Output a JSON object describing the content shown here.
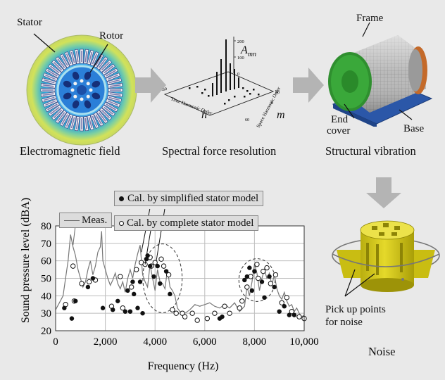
{
  "panels": {
    "em": {
      "caption": "Electromagnetic field",
      "labels": {
        "stator": "Stator",
        "rotor": "Rotor"
      }
    },
    "spectral": {
      "caption": "Spectral force resolution",
      "labels": {
        "amn": "A",
        "amn_sub": "mn",
        "n": "n",
        "m": "m",
        "time_axis": "Time Harmonic Order",
        "space_axis": "Space Harmonic Order",
        "z_ticks": [
          "200",
          "100",
          "0"
        ],
        "n_ticks": [
          "-60",
          "0",
          "60"
        ],
        "m_ticks": [
          "60",
          "0"
        ]
      }
    },
    "structural": {
      "caption": "Structural vibration",
      "labels": {
        "frame": "Frame",
        "end_cover_1": "End",
        "end_cover_2": "cover",
        "base": "Base"
      }
    },
    "noise": {
      "caption": "Noise",
      "labels": {
        "pick_1": "Pick up points",
        "pick_2": "for noise"
      }
    }
  },
  "arrow_color": "#b4b4b4",
  "chart_data": {
    "type": "line",
    "xlabel": "Frequency (Hz)",
    "ylabel": "Sound pressure level (dBA)",
    "xlim": [
      0,
      10000
    ],
    "ylim": [
      20,
      80
    ],
    "xticks": [
      "0",
      "2,000",
      "4,000",
      "6,000",
      "8,000",
      "10,000"
    ],
    "yticks": [
      "20",
      "30",
      "40",
      "50",
      "60",
      "70",
      "80"
    ],
    "grid": true,
    "legend": [
      {
        "label": "Meas.",
        "marker": "line"
      },
      {
        "label": "Cal. by simplified stator model",
        "marker": "filled-circle"
      },
      {
        "label": "Cal. by complete stator model",
        "marker": "open-circle"
      }
    ],
    "series": [
      {
        "name": "Meas.",
        "type": "line",
        "color": "#777777",
        "x": [
          0,
          150,
          300,
          400,
          500,
          600,
          700,
          800,
          900,
          1000,
          1100,
          1200,
          1300,
          1400,
          1500,
          1600,
          1700,
          1800,
          1850,
          1900,
          2000,
          2100,
          2200,
          2300,
          2400,
          2500,
          2600,
          2700,
          2800,
          2900,
          3000,
          3100,
          3200,
          3300,
          3400,
          3500,
          3600,
          3700,
          3800,
          3900,
          4000,
          4100,
          4200,
          4300,
          4400,
          4500,
          4600,
          4700,
          4800,
          4900,
          5000,
          5200,
          5400,
          5600,
          5800,
          6000,
          6200,
          6400,
          6600,
          6800,
          7000,
          7200,
          7400,
          7600,
          7700,
          7800,
          7900,
          8000,
          8100,
          8200,
          8300,
          8400,
          8500,
          8600,
          8700,
          8800,
          8900,
          9000,
          9100,
          9200,
          9300,
          9400,
          9500,
          9600,
          9700,
          9800,
          9900,
          10000
        ],
        "y": [
          32,
          36,
          40,
          50,
          60,
          75,
          68,
          63,
          55,
          50,
          45,
          48,
          55,
          60,
          52,
          57,
          65,
          68,
          77,
          60,
          55,
          50,
          46,
          49,
          53,
          47,
          44,
          48,
          42,
          50,
          55,
          50,
          58,
          64,
          69,
          52,
          48,
          45,
          58,
          50,
          43,
          55,
          48,
          47,
          44,
          55,
          45,
          43,
          40,
          33,
          31,
          30,
          32,
          35,
          34,
          35,
          36,
          34,
          33,
          35,
          33,
          36,
          31,
          34,
          45,
          40,
          48,
          58,
          53,
          43,
          50,
          55,
          50,
          53,
          46,
          52,
          44,
          40,
          38,
          42,
          37,
          34,
          35,
          31,
          33,
          30,
          28,
          29
        ]
      },
      {
        "name": "Cal. by simplified stator model",
        "type": "scatter",
        "marker": "filled",
        "x": [
          350,
          650,
          800,
          1300,
          1500,
          1900,
          2300,
          2500,
          2800,
          2900,
          3000,
          3100,
          3150,
          3300,
          3400,
          3500,
          3650,
          3700,
          3800,
          3950,
          4100,
          4200,
          4450,
          4600,
          6600,
          6700,
          7600,
          7700,
          7800,
          7900,
          8000,
          8300,
          8400,
          8600,
          8800,
          9000,
          9200,
          9400,
          9600
        ],
        "y": [
          33,
          27,
          37,
          45,
          50,
          33,
          32,
          37,
          31,
          43,
          31,
          48,
          41,
          33,
          48,
          30,
          61,
          63,
          57,
          51,
          57,
          47,
          54,
          41,
          27,
          28,
          49,
          51,
          56,
          43,
          54,
          48,
          39,
          51,
          45,
          31,
          34,
          29,
          29
        ],
        "annotations": [
          {
            "x": 3450,
            "y": 65
          },
          {
            "x": 4050,
            "y": 60
          }
        ]
      },
      {
        "name": "Cal. by complete stator model",
        "type": "scatter",
        "marker": "open",
        "x": [
          400,
          700,
          750,
          1050,
          1350,
          1600,
          2250,
          2600,
          2700,
          3050,
          3250,
          3450,
          3600,
          3800,
          3850,
          4000,
          4250,
          4350,
          4550,
          4700,
          4850,
          5100,
          5200,
          5500,
          5700,
          6100,
          6400,
          6800,
          7000,
          7400,
          7500,
          7700,
          7850,
          8100,
          8150,
          8350,
          8500,
          8650,
          8850,
          9100,
          9300,
          9500,
          9800,
          10000
        ],
        "y": [
          35,
          57,
          37,
          47,
          48,
          49,
          34,
          51,
          33,
          45,
          55,
          59,
          58,
          62,
          57,
          59,
          61,
          57,
          52,
          32,
          30,
          30,
          28,
          30,
          26,
          27,
          30,
          34,
          30,
          33,
          37,
          45,
          51,
          58,
          50,
          54,
          56,
          47,
          52,
          36,
          39,
          31,
          28,
          27
        ]
      }
    ]
  }
}
